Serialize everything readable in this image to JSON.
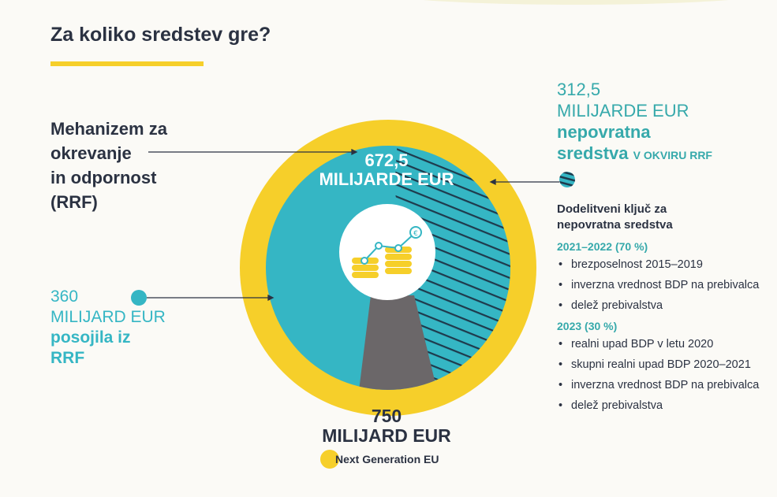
{
  "title": "Za koliko sredstev gre?",
  "rrf_label": [
    "Mehanizem za",
    "okrevanje",
    "in odpornost",
    "(RRF)"
  ],
  "center": {
    "value": "672,5",
    "unit": "MILIJARDE EUR"
  },
  "loans": {
    "value": "360",
    "unit": "MILIJARD EUR",
    "label_1": "posojila iz",
    "label_2": "RRF"
  },
  "grants": {
    "value": "312,5",
    "unit": "MILIJARDE EUR",
    "label_1": "nepovratna",
    "label_2": "sredstva",
    "label_3": "V OKVIRU RRF"
  },
  "allocation": {
    "heading_1": "Dodelitveni ključ za",
    "heading_2": "nepovratna sredstva",
    "periods": [
      {
        "label": "2021–2022 (70 %)",
        "items": [
          "brezposelnost 2015–2019",
          "inverzna vrednost BDP na prebivalca",
          "delež prebivalstva"
        ]
      },
      {
        "label": "2023 (30 %)",
        "items": [
          "realni upad BDP v letu 2020",
          "skupni realni upad BDP 2020–2021",
          "inverzna vrednost BDP na prebivalca",
          "delež prebivalstva"
        ]
      }
    ]
  },
  "total": {
    "value": "750",
    "unit": "MILIJARD EUR",
    "label": "Next Generation EU"
  },
  "colors": {
    "yellow": "#f6cf2a",
    "teal": "#35b6c4",
    "grey": "#6b6769",
    "hatch": "#1e3a4c",
    "text": "#2b3242"
  },
  "icons": [
    "coins-growth-euro-icon",
    "teal-dot-icon",
    "hatched-dot-icon",
    "yellow-dot-icon"
  ]
}
